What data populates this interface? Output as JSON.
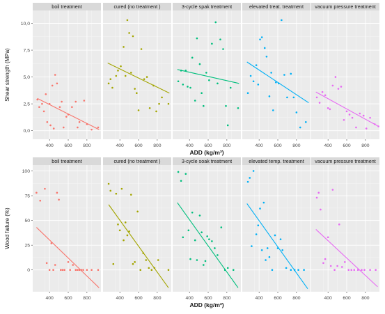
{
  "chart_data": [
    {
      "type": "scatter",
      "xlabel": "ADD (kg/m³)",
      "ylabel": "Shear strength (MPa)",
      "xlim": [
        220,
        950
      ],
      "ylim": [
        -0.8,
        11.2
      ],
      "x_ticks": [
        400,
        600,
        800
      ],
      "x_tick_labels": [
        "400",
        "600",
        "800"
      ],
      "y_ticks": [
        0,
        2.5,
        5,
        7.5,
        10
      ],
      "y_tick_labels": [
        "0,0",
        "2,5",
        "5,0",
        "7,5",
        "10,0"
      ],
      "grid": true,
      "legend": "none",
      "facets": [
        {
          "strip": "boil treatment",
          "color": "#F8766D",
          "points": [
            [
              270,
              2.9
            ],
            [
              290,
              2.2
            ],
            [
              320,
              2.5
            ],
            [
              340,
              1.8
            ],
            [
              360,
              3.4
            ],
            [
              375,
              0.8
            ],
            [
              400,
              2.5
            ],
            [
              410,
              0.5
            ],
            [
              430,
              4.2
            ],
            [
              445,
              0.2
            ],
            [
              460,
              5.2
            ],
            [
              480,
              4.4
            ],
            [
              510,
              2.2
            ],
            [
              530,
              2.7
            ],
            [
              550,
              0.3
            ],
            [
              580,
              1.3
            ],
            [
              600,
              1.5
            ],
            [
              640,
              2.2
            ],
            [
              680,
              2.7
            ],
            [
              700,
              0.3
            ],
            [
              720,
              0.8
            ],
            [
              770,
              2.8
            ],
            [
              800,
              0.6
            ],
            [
              850,
              0.1
            ],
            [
              920,
              0.3
            ]
          ],
          "fit": [
            [
              270,
              3.0
            ],
            [
              930,
              0.1
            ]
          ]
        },
        {
          "strip": "cured (no treatment )",
          "color": "#A3A500",
          "points": [
            [
              280,
              4.4
            ],
            [
              300,
              4.8
            ],
            [
              320,
              4.0
            ],
            [
              360,
              5.1
            ],
            [
              380,
              5.6
            ],
            [
              410,
              6.0
            ],
            [
              440,
              7.8
            ],
            [
              460,
              5.1
            ],
            [
              480,
              10.3
            ],
            [
              500,
              9.1
            ],
            [
              520,
              5.4
            ],
            [
              540,
              8.8
            ],
            [
              560,
              3.9
            ],
            [
              580,
              3.5
            ],
            [
              600,
              1.9
            ],
            [
              630,
              7.6
            ],
            [
              660,
              4.8
            ],
            [
              690,
              5.0
            ],
            [
              720,
              2.1
            ],
            [
              760,
              4.2
            ],
            [
              790,
              1.8
            ],
            [
              820,
              2.5
            ],
            [
              850,
              3.1
            ],
            [
              920,
              2.5
            ]
          ],
          "fit": [
            [
              270,
              6.3
            ],
            [
              930,
              3.5
            ]
          ]
        },
        {
          "strip": "3-cycle spak treatment",
          "color": "#00BF7D",
          "points": [
            [
              280,
              4.6
            ],
            [
              310,
              5.6
            ],
            [
              330,
              4.3
            ],
            [
              360,
              5.6
            ],
            [
              380,
              4.1
            ],
            [
              410,
              4.0
            ],
            [
              430,
              6.8
            ],
            [
              460,
              2.8
            ],
            [
              480,
              8.6
            ],
            [
              510,
              6.2
            ],
            [
              530,
              3.5
            ],
            [
              550,
              2.3
            ],
            [
              580,
              5.4
            ],
            [
              610,
              4.7
            ],
            [
              640,
              8.1
            ],
            [
              680,
              10.1
            ],
            [
              700,
              4.4
            ],
            [
              730,
              8.5
            ],
            [
              760,
              7.6
            ],
            [
              790,
              2.3
            ],
            [
              810,
              0.5
            ],
            [
              840,
              4.0
            ],
            [
              920,
              2.1
            ]
          ],
          "fit": [
            [
              270,
              5.7
            ],
            [
              930,
              4.4
            ]
          ]
        },
        {
          "strip": "elevated treat. treatment",
          "color": "#00B0F6",
          "points": [
            [
              280,
              3.5
            ],
            [
              310,
              5.1
            ],
            [
              340,
              4.6
            ],
            [
              370,
              6.1
            ],
            [
              390,
              4.3
            ],
            [
              410,
              8.5
            ],
            [
              430,
              8.7
            ],
            [
              460,
              7.7
            ],
            [
              480,
              6.9
            ],
            [
              510,
              3.2
            ],
            [
              530,
              5.4
            ],
            [
              550,
              1.9
            ],
            [
              580,
              4.5
            ],
            [
              610,
              4.4
            ],
            [
              640,
              10.3
            ],
            [
              670,
              5.2
            ],
            [
              700,
              3.1
            ],
            [
              740,
              5.3
            ],
            [
              770,
              3.1
            ],
            [
              800,
              1.7
            ],
            [
              840,
              0.3
            ],
            [
              900,
              0.8
            ]
          ],
          "fit": [
            [
              270,
              6.4
            ],
            [
              930,
              2.6
            ]
          ]
        },
        {
          "strip": "vacuum pressure treatment",
          "color": "#E76BF3",
          "points": [
            [
              280,
              3.1
            ],
            [
              310,
              2.6
            ],
            [
              340,
              3.6
            ],
            [
              370,
              3.3
            ],
            [
              400,
              2.1
            ],
            [
              420,
              2.0
            ],
            [
              450,
              4.2
            ],
            [
              480,
              5.0
            ],
            [
              510,
              3.9
            ],
            [
              540,
              4.1
            ],
            [
              570,
              1.0
            ],
            [
              600,
              1.8
            ],
            [
              630,
              1.5
            ],
            [
              660,
              1.2
            ],
            [
              700,
              0.3
            ],
            [
              740,
              1.6
            ],
            [
              780,
              1.4
            ],
            [
              810,
              0.2
            ],
            [
              850,
              1.2
            ],
            [
              900,
              0.6
            ],
            [
              940,
              0.4
            ]
          ],
          "fit": [
            [
              270,
              3.6
            ],
            [
              940,
              0.4
            ]
          ]
        }
      ]
    },
    {
      "type": "scatter",
      "xlabel": "ADD (kg/m³)",
      "ylabel": "Wood failure (%)",
      "xlim": [
        220,
        950
      ],
      "ylim": [
        -22,
        106
      ],
      "x_ticks": [
        400,
        600,
        800
      ],
      "x_tick_labels": [
        "400",
        "600",
        "800"
      ],
      "y_ticks": [
        0,
        25,
        50,
        75,
        100
      ],
      "y_tick_labels": [
        "0",
        "25",
        "50",
        "75",
        "100"
      ],
      "grid": true,
      "legend": "none",
      "facets": [
        {
          "strip": "boil treatment",
          "color": "#F8766D",
          "points": [
            [
              260,
              78
            ],
            [
              300,
              70
            ],
            [
              350,
              82
            ],
            [
              370,
              7
            ],
            [
              400,
              0
            ],
            [
              420,
              27
            ],
            [
              440,
              0
            ],
            [
              460,
              5
            ],
            [
              480,
              78
            ],
            [
              500,
              71
            ],
            [
              520,
              0
            ],
            [
              540,
              0
            ],
            [
              560,
              0
            ],
            [
              600,
              8
            ],
            [
              620,
              0
            ],
            [
              650,
              5
            ],
            [
              680,
              0
            ],
            [
              700,
              0
            ],
            [
              720,
              0
            ],
            [
              740,
              0
            ],
            [
              760,
              0
            ],
            [
              800,
              0
            ],
            [
              850,
              0
            ],
            [
              920,
              0
            ]
          ],
          "fit": [
            [
              260,
              43
            ],
            [
              930,
              -18
            ]
          ]
        },
        {
          "strip": "cured (no treatment )",
          "color": "#A3A500",
          "points": [
            [
              280,
              87
            ],
            [
              300,
              80
            ],
            [
              330,
              6
            ],
            [
              360,
              77
            ],
            [
              380,
              46
            ],
            [
              400,
              40
            ],
            [
              420,
              82
            ],
            [
              440,
              30
            ],
            [
              460,
              48
            ],
            [
              480,
              35
            ],
            [
              500,
              39
            ],
            [
              520,
              76
            ],
            [
              540,
              6
            ],
            [
              560,
              8
            ],
            [
              590,
              59
            ],
            [
              620,
              0
            ],
            [
              650,
              17
            ],
            [
              680,
              10
            ],
            [
              710,
              2
            ],
            [
              740,
              0
            ],
            [
              770,
              2
            ],
            [
              810,
              10
            ],
            [
              920,
              0
            ]
          ],
          "fit": [
            [
              280,
              66
            ],
            [
              920,
              -18
            ]
          ]
        },
        {
          "strip": "3-cycle soak treatment",
          "color": "#00BF7D",
          "points": [
            [
              280,
              99
            ],
            [
              310,
              90
            ],
            [
              330,
              33
            ],
            [
              360,
              97
            ],
            [
              390,
              40
            ],
            [
              410,
              11
            ],
            [
              430,
              58
            ],
            [
              460,
              30
            ],
            [
              480,
              10
            ],
            [
              510,
              55
            ],
            [
              530,
              38
            ],
            [
              550,
              5
            ],
            [
              570,
              9
            ],
            [
              590,
              34
            ],
            [
              610,
              31
            ],
            [
              640,
              29
            ],
            [
              670,
              22
            ],
            [
              700,
              15
            ],
            [
              740,
              43
            ],
            [
              780,
              0
            ],
            [
              810,
              2
            ],
            [
              870,
              0
            ]
          ],
          "fit": [
            [
              270,
              68
            ],
            [
              920,
              -18
            ]
          ]
        },
        {
          "strip": "elevated temp. treatment",
          "color": "#00B0F6",
          "points": [
            [
              280,
              89
            ],
            [
              300,
              93
            ],
            [
              320,
              24
            ],
            [
              340,
              100
            ],
            [
              370,
              36
            ],
            [
              390,
              45
            ],
            [
              410,
              62
            ],
            [
              430,
              20
            ],
            [
              450,
              68
            ],
            [
              470,
              10
            ],
            [
              490,
              22
            ],
            [
              510,
              13
            ],
            [
              540,
              0
            ],
            [
              570,
              35
            ],
            [
              600,
              22
            ],
            [
              630,
              31
            ],
            [
              650,
              20
            ],
            [
              690,
              2
            ],
            [
              740,
              0
            ],
            [
              780,
              0
            ],
            [
              820,
              0
            ],
            [
              880,
              0
            ]
          ],
          "fit": [
            [
              270,
              67
            ],
            [
              920,
              -19
            ]
          ]
        },
        {
          "strip": "vacuum pressure treatment",
          "color": "#E76BF3",
          "points": [
            [
              280,
              73
            ],
            [
              300,
              78
            ],
            [
              320,
              61
            ],
            [
              350,
              7
            ],
            [
              370,
              11
            ],
            [
              400,
              33
            ],
            [
              430,
              4
            ],
            [
              450,
              81
            ],
            [
              470,
              0
            ],
            [
              500,
              4
            ],
            [
              520,
              46
            ],
            [
              550,
              3
            ],
            [
              580,
              8
            ],
            [
              620,
              0
            ],
            [
              650,
              0
            ],
            [
              680,
              0
            ],
            [
              720,
              0
            ],
            [
              760,
              0
            ],
            [
              790,
              0
            ],
            [
              850,
              0
            ],
            [
              910,
              0
            ]
          ],
          "fit": [
            [
              270,
              41
            ],
            [
              930,
              -17
            ]
          ]
        }
      ]
    }
  ],
  "y_titles": [
    "Shear strength (MPa)",
    "Wood failure (%)"
  ],
  "x_titles": [
    "ADD (kg/m³)",
    "ADD (kg/m³)"
  ]
}
